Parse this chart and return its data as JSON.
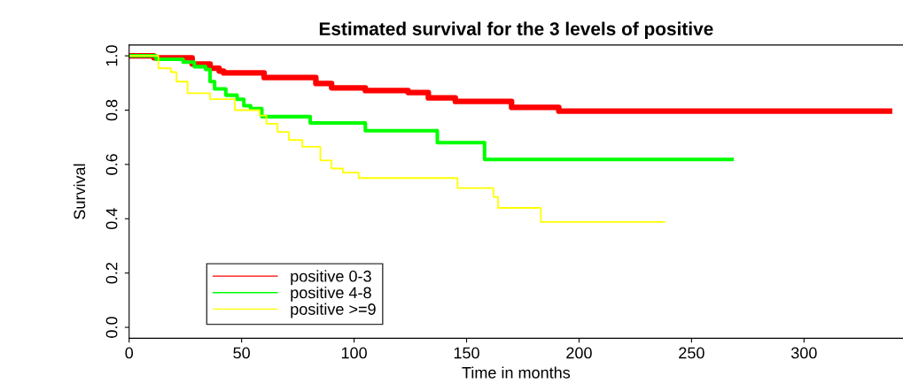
{
  "chart_data": {
    "type": "step",
    "title": "Estimated survival for the 3 levels of positive",
    "xlabel": "Time in months",
    "ylabel": "Survival",
    "xlim": [
      0,
      344
    ],
    "ylim": [
      -0.04,
      1.04
    ],
    "xticks": [
      0,
      50,
      100,
      150,
      200,
      250,
      300
    ],
    "yticks": [
      {
        "value": 0,
        "label": "0.0"
      },
      {
        "value": 0.2,
        "label": "0.2"
      },
      {
        "value": 0.4,
        "label": "0.4"
      },
      {
        "value": 0.6,
        "label": "0.6"
      },
      {
        "value": 0.8,
        "label": "0.8"
      },
      {
        "value": 1,
        "label": "1.0"
      }
    ],
    "grid": false,
    "legend": "bottom left",
    "line_style": "solid",
    "series": [
      {
        "name": "positive 0-3",
        "color": "#ff0000",
        "x": [
          0,
          11,
          28,
          36,
          40,
          42,
          60,
          83,
          90,
          105,
          124,
          133,
          145,
          170,
          191,
          338
        ],
        "values": [
          1,
          0.993,
          0.97,
          0.954,
          0.944,
          0.937,
          0.92,
          0.898,
          0.882,
          0.872,
          0.865,
          0.845,
          0.832,
          0.81,
          0.796,
          0.796
        ]
      },
      {
        "name": "positive 4-8",
        "color": "#00ff00",
        "x": [
          0,
          12,
          24,
          29,
          34,
          36,
          38,
          43,
          48,
          51,
          54,
          59,
          80.5,
          105,
          137,
          158,
          268
        ],
        "values": [
          1,
          0.987,
          0.977,
          0.96,
          0.95,
          0.905,
          0.878,
          0.855,
          0.84,
          0.816,
          0.806,
          0.776,
          0.753,
          0.724,
          0.68,
          0.618,
          0.618
        ]
      },
      {
        "name": "positive >=9",
        "color": "#ffff00",
        "x": [
          0,
          13,
          18.5,
          21,
          26,
          36,
          47,
          58,
          61,
          66,
          71,
          77,
          85,
          90,
          95,
          102,
          146,
          162,
          164,
          183,
          238
        ],
        "values": [
          1,
          0.954,
          0.94,
          0.905,
          0.862,
          0.84,
          0.8,
          0.78,
          0.75,
          0.72,
          0.69,
          0.665,
          0.615,
          0.585,
          0.57,
          0.55,
          0.513,
          0.48,
          0.44,
          0.388,
          0.388
        ]
      }
    ]
  }
}
